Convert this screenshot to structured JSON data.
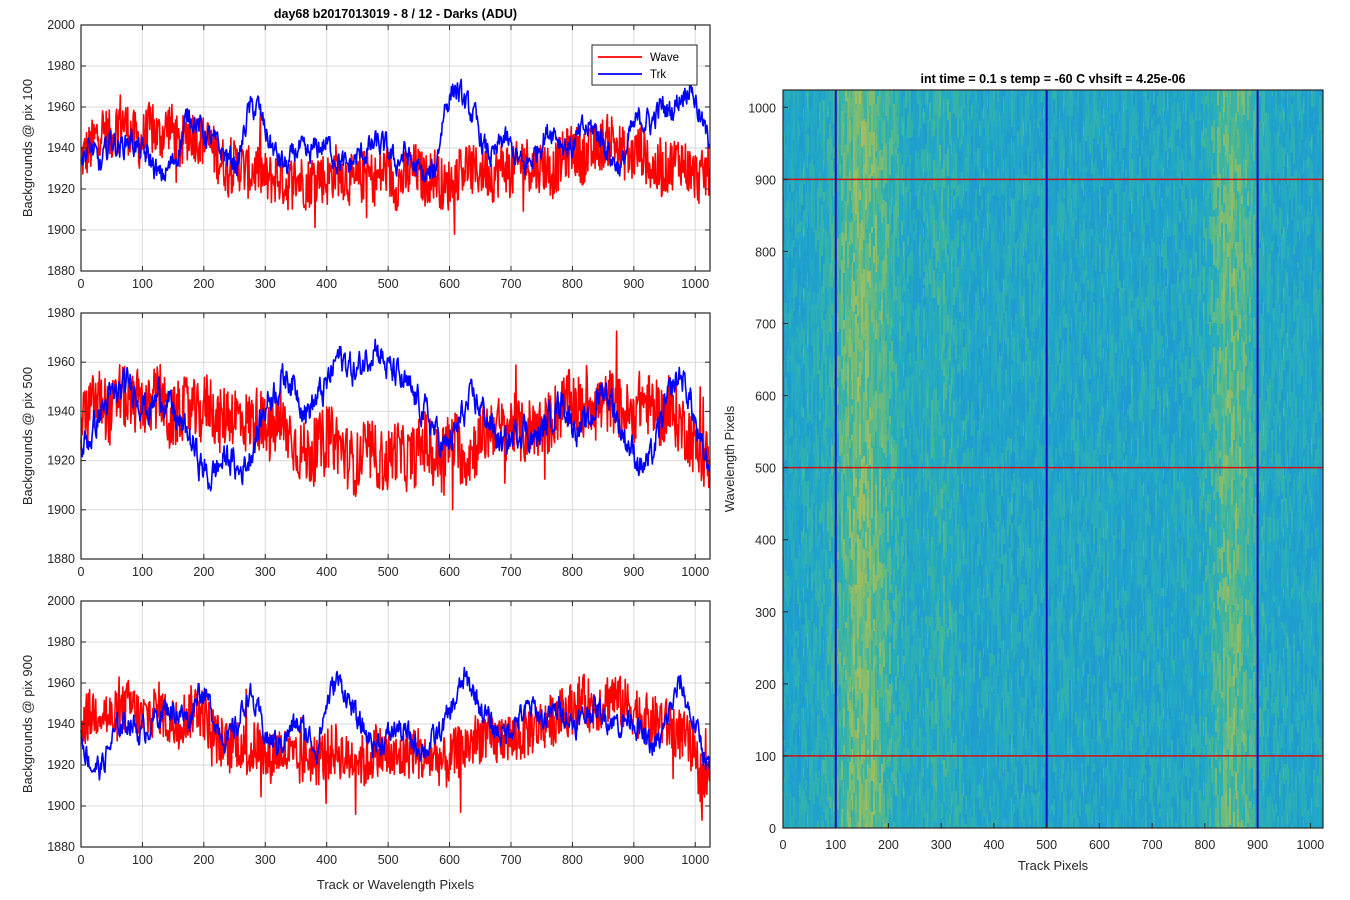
{
  "colors": {
    "wave": "#ff0000",
    "trk": "#0000ff",
    "grid": "#d9d9d9",
    "axis": "#262626",
    "marker_h": "#d01010",
    "marker_v": "#1010c0"
  },
  "chart_data": [
    {
      "type": "line",
      "title": "day68 b2017013019 - 8 / 12 - Darks (ADU)",
      "xlabel": "",
      "ylabel": "Backgrounds @ pix 100",
      "xlim": [
        0,
        1024
      ],
      "ylim": [
        1880,
        2000
      ],
      "grid": true,
      "legend_position": "top-right",
      "xticks": [
        0,
        100,
        200,
        300,
        400,
        500,
        600,
        700,
        800,
        900,
        1000
      ],
      "yticks": [
        1880,
        1900,
        1920,
        1940,
        1960,
        1980,
        2000
      ],
      "series": [
        {
          "name": "Wave",
          "color": "#ff0000",
          "x": [
            0,
            16,
            32,
            48,
            64,
            80,
            96,
            112,
            128,
            144,
            160,
            176,
            192,
            208,
            224,
            240,
            256,
            272,
            288,
            304,
            320,
            336,
            352,
            368,
            384,
            400,
            416,
            432,
            448,
            464,
            480,
            496,
            512,
            528,
            544,
            560,
            576,
            592,
            608,
            624,
            640,
            656,
            672,
            688,
            704,
            720,
            736,
            752,
            768,
            784,
            800,
            816,
            832,
            848,
            864,
            880,
            896,
            912,
            928,
            944,
            960,
            976,
            992,
            1008,
            1023
          ],
          "y": [
            1935,
            1940,
            1950,
            1945,
            1955,
            1948,
            1942,
            1950,
            1945,
            1952,
            1940,
            1948,
            1945,
            1942,
            1935,
            1930,
            1932,
            1928,
            1930,
            1924,
            1926,
            1922,
            1926,
            1922,
            1928,
            1924,
            1930,
            1926,
            1922,
            1928,
            1924,
            1930,
            1922,
            1926,
            1930,
            1924,
            1928,
            1920,
            1925,
            1932,
            1928,
            1930,
            1926,
            1932,
            1928,
            1935,
            1930,
            1932,
            1928,
            1935,
            1940,
            1935,
            1938,
            1942,
            1945,
            1938,
            1935,
            1940,
            1930,
            1928,
            1932,
            1935,
            1928,
            1925,
            1930
          ]
        },
        {
          "name": "Trk",
          "color": "#0000ff",
          "x": [
            0,
            16,
            32,
            48,
            64,
            80,
            96,
            112,
            128,
            144,
            160,
            176,
            192,
            208,
            224,
            240,
            256,
            272,
            288,
            304,
            320,
            336,
            352,
            368,
            384,
            400,
            416,
            432,
            448,
            464,
            480,
            496,
            512,
            528,
            544,
            560,
            576,
            592,
            608,
            624,
            640,
            656,
            672,
            688,
            704,
            720,
            736,
            752,
            768,
            784,
            800,
            816,
            832,
            848,
            864,
            880,
            896,
            912,
            928,
            944,
            960,
            976,
            992,
            1008,
            1023
          ],
          "y": [
            1935,
            1940,
            1930,
            1945,
            1940,
            1945,
            1938,
            1935,
            1925,
            1930,
            1940,
            1958,
            1950,
            1945,
            1940,
            1935,
            1932,
            1958,
            1960,
            1945,
            1935,
            1930,
            1940,
            1935,
            1940,
            1942,
            1935,
            1930,
            1935,
            1938,
            1942,
            1940,
            1932,
            1938,
            1930,
            1925,
            1928,
            1960,
            1970,
            1962,
            1955,
            1940,
            1935,
            1945,
            1938,
            1930,
            1935,
            1945,
            1950,
            1942,
            1940,
            1948,
            1950,
            1945,
            1935,
            1930,
            1948,
            1955,
            1952,
            1960,
            1958,
            1965,
            1972,
            1955,
            1942
          ]
        }
      ]
    },
    {
      "type": "line",
      "title": "",
      "xlabel": "",
      "ylabel": "Backgrounds @ pix 500",
      "xlim": [
        0,
        1024
      ],
      "ylim": [
        1880,
        1980
      ],
      "grid": true,
      "xticks": [
        0,
        100,
        200,
        300,
        400,
        500,
        600,
        700,
        800,
        900,
        1000
      ],
      "yticks": [
        1880,
        1900,
        1920,
        1940,
        1960,
        1980
      ],
      "series": [
        {
          "name": "",
          "color": "#ff0000",
          "x": [
            0,
            16,
            32,
            48,
            64,
            80,
            96,
            112,
            128,
            144,
            160,
            176,
            192,
            208,
            224,
            240,
            256,
            272,
            288,
            304,
            320,
            336,
            352,
            368,
            384,
            400,
            416,
            432,
            448,
            464,
            480,
            496,
            512,
            528,
            544,
            560,
            576,
            592,
            608,
            624,
            640,
            656,
            672,
            688,
            704,
            720,
            736,
            752,
            768,
            784,
            800,
            816,
            832,
            848,
            864,
            880,
            896,
            912,
            928,
            944,
            960,
            976,
            992,
            1008,
            1023
          ],
          "y": [
            1935,
            1942,
            1945,
            1938,
            1948,
            1942,
            1945,
            1940,
            1948,
            1935,
            1940,
            1942,
            1938,
            1945,
            1935,
            1940,
            1938,
            1935,
            1938,
            1930,
            1935,
            1932,
            1925,
            1922,
            1925,
            1930,
            1928,
            1922,
            1918,
            1925,
            1922,
            1918,
            1925,
            1920,
            1922,
            1928,
            1920,
            1925,
            1928,
            1920,
            1925,
            1930,
            1935,
            1932,
            1935,
            1930,
            1935,
            1932,
            1938,
            1942,
            1945,
            1940,
            1945,
            1942,
            1945,
            1940,
            1938,
            1945,
            1942,
            1938,
            1940,
            1935,
            1930,
            1922,
            1920
          ]
        },
        {
          "name": "",
          "color": "#0000ff",
          "x": [
            0,
            16,
            32,
            48,
            64,
            80,
            96,
            112,
            128,
            144,
            160,
            176,
            192,
            208,
            224,
            240,
            256,
            272,
            288,
            304,
            320,
            336,
            352,
            368,
            384,
            400,
            416,
            432,
            448,
            464,
            480,
            496,
            512,
            528,
            544,
            560,
            576,
            592,
            608,
            624,
            640,
            656,
            672,
            688,
            704,
            720,
            736,
            752,
            768,
            784,
            800,
            816,
            832,
            848,
            864,
            880,
            896,
            912,
            928,
            944,
            960,
            976,
            992,
            1008,
            1023
          ],
          "y": [
            1925,
            1930,
            1940,
            1945,
            1948,
            1952,
            1945,
            1940,
            1948,
            1942,
            1935,
            1930,
            1920,
            1912,
            1918,
            1922,
            1915,
            1920,
            1932,
            1945,
            1950,
            1955,
            1948,
            1940,
            1945,
            1950,
            1962,
            1960,
            1955,
            1962,
            1968,
            1958,
            1955,
            1950,
            1945,
            1940,
            1932,
            1925,
            1930,
            1940,
            1945,
            1940,
            1932,
            1925,
            1930,
            1935,
            1928,
            1932,
            1940,
            1945,
            1935,
            1932,
            1938,
            1950,
            1945,
            1932,
            1925,
            1918,
            1920,
            1935,
            1948,
            1955,
            1945,
            1925,
            1918
          ]
        }
      ]
    },
    {
      "type": "line",
      "title": "",
      "xlabel": "Track or Wavelength Pixels",
      "ylabel": "Backgrounds @ pix 900",
      "xlim": [
        0,
        1024
      ],
      "ylim": [
        1880,
        2000
      ],
      "grid": true,
      "xticks": [
        0,
        100,
        200,
        300,
        400,
        500,
        600,
        700,
        800,
        900,
        1000
      ],
      "yticks": [
        1880,
        1900,
        1920,
        1940,
        1960,
        1980,
        2000
      ],
      "series": [
        {
          "name": "",
          "color": "#ff0000",
          "x": [
            0,
            16,
            32,
            48,
            64,
            80,
            96,
            112,
            128,
            144,
            160,
            176,
            192,
            208,
            224,
            240,
            256,
            272,
            288,
            304,
            320,
            336,
            352,
            368,
            384,
            400,
            416,
            432,
            448,
            464,
            480,
            496,
            512,
            528,
            544,
            560,
            576,
            592,
            608,
            624,
            640,
            656,
            672,
            688,
            704,
            720,
            736,
            752,
            768,
            784,
            800,
            816,
            832,
            848,
            864,
            880,
            896,
            912,
            928,
            944,
            960,
            976,
            992,
            1008,
            1023
          ],
          "y": [
            1940,
            1945,
            1948,
            1942,
            1945,
            1950,
            1942,
            1945,
            1948,
            1940,
            1942,
            1945,
            1950,
            1940,
            1932,
            1928,
            1932,
            1925,
            1930,
            1922,
            1928,
            1925,
            1920,
            1925,
            1922,
            1925,
            1928,
            1922,
            1925,
            1920,
            1928,
            1925,
            1922,
            1925,
            1928,
            1922,
            1925,
            1920,
            1925,
            1928,
            1932,
            1935,
            1930,
            1935,
            1932,
            1935,
            1938,
            1940,
            1942,
            1945,
            1948,
            1952,
            1948,
            1950,
            1955,
            1950,
            1948,
            1945,
            1940,
            1942,
            1938,
            1935,
            1930,
            1915,
            1912
          ]
        },
        {
          "name": "",
          "color": "#0000ff",
          "x": [
            0,
            16,
            32,
            48,
            64,
            80,
            96,
            112,
            128,
            144,
            160,
            176,
            192,
            208,
            224,
            240,
            256,
            272,
            288,
            304,
            320,
            336,
            352,
            368,
            384,
            400,
            416,
            432,
            448,
            464,
            480,
            496,
            512,
            528,
            544,
            560,
            576,
            592,
            608,
            624,
            640,
            656,
            672,
            688,
            704,
            720,
            736,
            752,
            768,
            784,
            800,
            816,
            832,
            848,
            864,
            880,
            896,
            912,
            928,
            944,
            960,
            976,
            992,
            1008,
            1023
          ],
          "y": [
            1935,
            1920,
            1918,
            1930,
            1940,
            1942,
            1935,
            1940,
            1945,
            1948,
            1945,
            1942,
            1958,
            1950,
            1938,
            1932,
            1940,
            1955,
            1945,
            1932,
            1930,
            1935,
            1940,
            1935,
            1928,
            1950,
            1962,
            1955,
            1942,
            1935,
            1930,
            1932,
            1938,
            1935,
            1930,
            1928,
            1932,
            1940,
            1950,
            1962,
            1955,
            1945,
            1938,
            1935,
            1940,
            1945,
            1948,
            1942,
            1945,
            1948,
            1940,
            1942,
            1948,
            1945,
            1942,
            1940,
            1945,
            1935,
            1928,
            1932,
            1948,
            1960,
            1945,
            1932,
            1918
          ]
        }
      ]
    },
    {
      "type": "heatmap",
      "title": "int time = 0.1 s   temp = -60 C   vhsift = 4.25e-06",
      "xlabel": "Track Pixels",
      "ylabel": "Wavelength Pixels",
      "xlim": [
        0,
        1024
      ],
      "ylim": [
        0,
        1024
      ],
      "xticks": [
        0,
        100,
        200,
        300,
        400,
        500,
        600,
        700,
        800,
        900,
        1000
      ],
      "yticks": [
        0,
        100,
        200,
        300,
        400,
        500,
        600,
        700,
        800,
        900,
        1000
      ],
      "colormap": [
        "#1e9ad0",
        "#20a8c8",
        "#38b4a4",
        "#78bc74",
        "#b4be58"
      ],
      "warm_column_bands": [
        {
          "center": 150,
          "width": 120,
          "strength": 0.85
        },
        {
          "center": 300,
          "width": 60,
          "strength": 0.3
        },
        {
          "center": 850,
          "width": 90,
          "strength": 0.75
        }
      ],
      "marker_rows": [
        100,
        500,
        900
      ],
      "marker_columns": [
        100,
        500,
        900
      ]
    }
  ]
}
